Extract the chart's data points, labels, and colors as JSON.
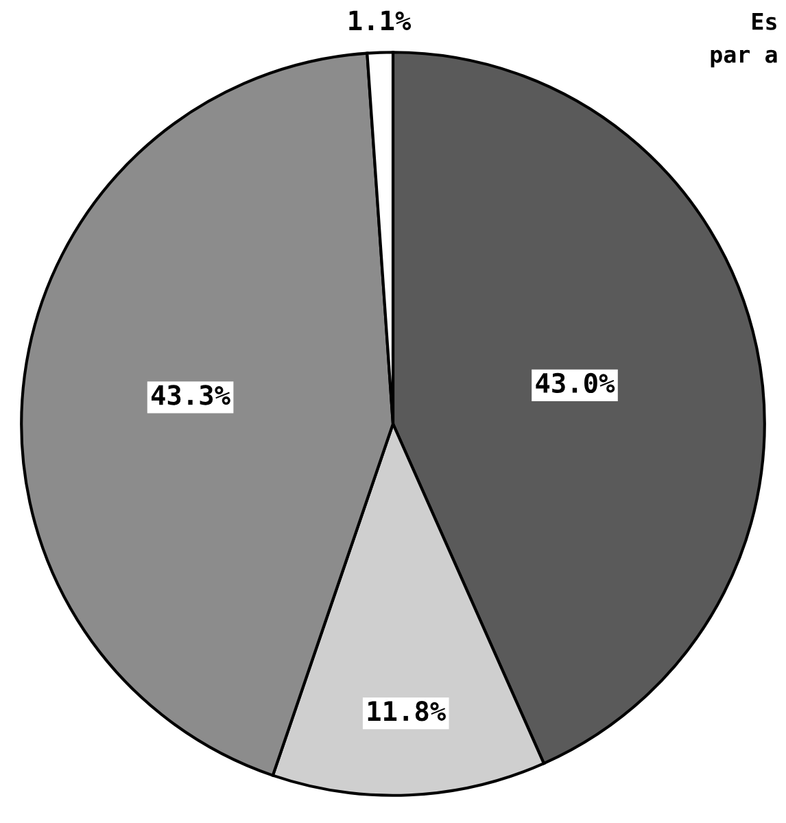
{
  "chart_data": {
    "type": "pie",
    "categories": [
      null,
      null,
      null,
      null
    ],
    "values": [
      43.0,
      11.8,
      43.3,
      1.1
    ],
    "colors": [
      "#5a5a5a",
      "#cfcfcf",
      "#8c8c8c",
      "#ffffff"
    ],
    "value_labels": [
      "43.0%",
      "11.8%",
      "43.3%",
      "1.1%"
    ],
    "annotations": [
      "Es",
      "par a"
    ]
  }
}
